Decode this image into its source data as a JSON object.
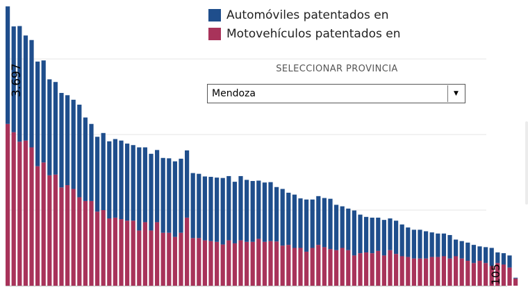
{
  "legend": {
    "items": [
      {
        "label": "Automóviles patentados en",
        "color": "#1f4e8c"
      },
      {
        "label": "Motovehículos patentados en",
        "color": "#a8335a"
      }
    ]
  },
  "filter": {
    "title": "SELECCIONAR PROVINCIA",
    "selected": "Mendoza",
    "icon": "caret-down-icon"
  },
  "chart_data": {
    "type": "bar",
    "stacked": true,
    "grid": true,
    "max_label": "3.697",
    "min_label": "105",
    "series": [
      {
        "name": "Automóviles patentados en",
        "color": "#1f4e8c",
        "values": [
          1555,
          1400,
          1530,
          1390,
          1420,
          1385,
          1350,
          1270,
          1225,
          1250,
          1190,
          1180,
          1225,
          1105,
          1020,
          990,
          1020,
          1020,
          1040,
          1040,
          1020,
          1000,
          1100,
          990,
          1015,
          955,
          990,
          985,
          1000,
          980,
          890,
          860,
          850,
          845,
          850,
          850,
          880,
          850,
          815,
          850,
          820,
          805,
          770,
          785,
          780,
          720,
          750,
          690,
          705,
          655,
          690,
          640,
          645,
          650,
          665,
          600,
          550,
          550,
          595,
          510,
          470,
          470,
          440,
          470,
          420,
          440,
          420,
          390,
          380,
          380,
          360,
          325,
          310,
          300,
          310,
          220,
          230,
          240,
          240,
          190,
          210,
          240,
          140,
          150,
          160,
          10
        ]
      },
      {
        "name": "Motovehículos patentados en",
        "color": "#a8335a",
        "values": [
          2140,
          2030,
          1905,
          1920,
          1830,
          1580,
          1630,
          1460,
          1470,
          1300,
          1330,
          1280,
          1170,
          1120,
          1120,
          980,
          1000,
          890,
          900,
          880,
          860,
          860,
          730,
          840,
          730,
          840,
          700,
          700,
          645,
          700,
          900,
          630,
          630,
          600,
          590,
          580,
          545,
          600,
          560,
          600,
          580,
          580,
          620,
          580,
          590,
          585,
          530,
          540,
          500,
          500,
          450,
          500,
          540,
          510,
          485,
          470,
          500,
          470,
          400,
          430,
          440,
          430,
          460,
          400,
          470,
          420,
          390,
          380,
          360,
          360,
          360,
          380,
          380,
          390,
          360,
          390,
          360,
          330,
          300,
          330,
          300,
          260,
          300,
          280,
          240,
          95
        ]
      }
    ]
  }
}
